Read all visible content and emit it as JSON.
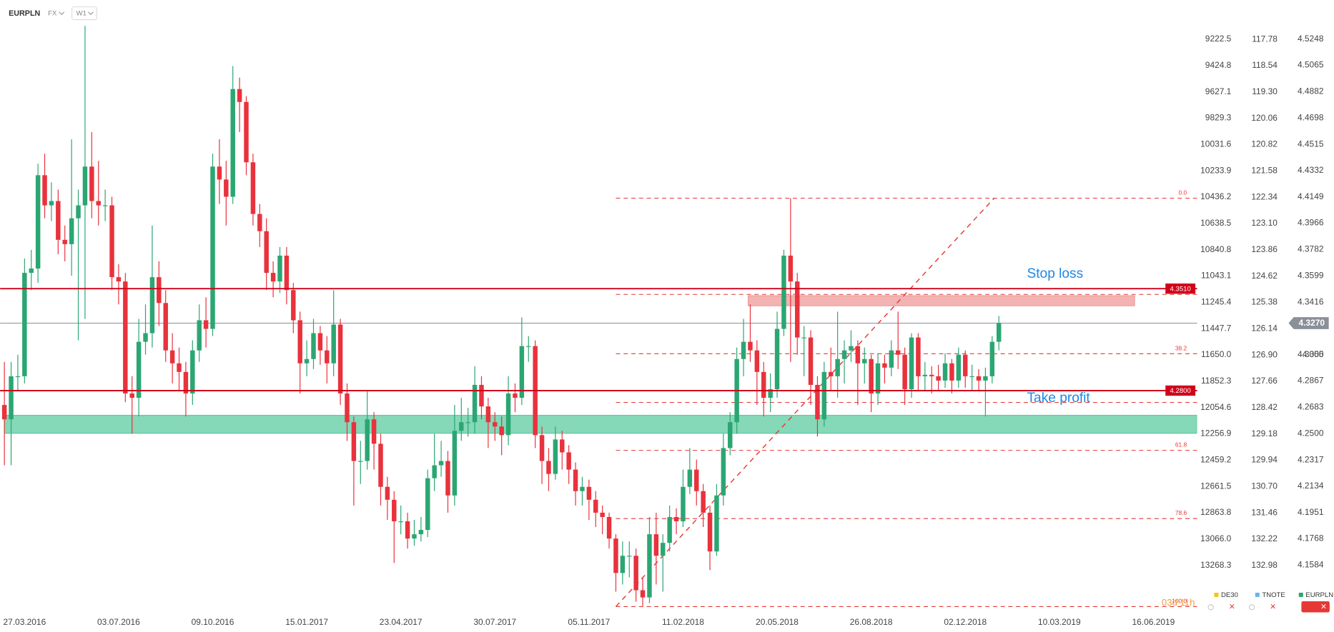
{
  "header": {
    "symbol": "EURPLN",
    "market": "FX",
    "interval": "W1"
  },
  "chart_data": {
    "type": "candlestick",
    "name": "EURPLN",
    "color": "#2ba673",
    "up_color": "#2ba673",
    "down_color": "#e8323c",
    "xlim": [
      0,
      177.5
    ],
    "xticks": [
      {
        "value": 3,
        "label": "27.03.2016"
      },
      {
        "value": 17,
        "label": "03.07.2016"
      },
      {
        "value": 31,
        "label": "09.10.2016"
      },
      {
        "value": 45,
        "label": "15.01.2017"
      },
      {
        "value": 59,
        "label": "23.04.2017"
      },
      {
        "value": 73,
        "label": "30.07.2017"
      },
      {
        "value": 87,
        "label": "05.11.2017"
      },
      {
        "value": 101,
        "label": "11.02.2018"
      },
      {
        "value": 115,
        "label": "20.05.2018"
      },
      {
        "value": 129,
        "label": "26.08.2018"
      },
      {
        "value": 143,
        "label": "02.12.2018"
      },
      {
        "value": 157,
        "label": "10.03.2019"
      },
      {
        "value": 171,
        "label": "16.06.2019"
      }
    ],
    "ylim": [
      4.125,
      4.552
    ],
    "yticks": [
      4.5248,
      4.5065,
      4.4882,
      4.4698,
      4.4515,
      4.4332,
      4.4149,
      4.3966,
      4.3782,
      4.3599,
      4.3416,
      4.305,
      {
        "value": 4.305,
        "label": "4.3050"
      },
      4.2867,
      4.2683,
      {
        "value": 4.25,
        "label": "4.2500"
      },
      4.2317,
      4.2134,
      4.1951,
      4.1768,
      4.1584
    ],
    "other_axes": [
      {
        "name": "DE30",
        "color": "#f5c518",
        "lim": [
          13636.1,
          8920.4
        ],
        "ticks": [
          9222.5,
          9424.8,
          9627.1,
          9829.3,
          10031.6,
          10233.9,
          10436.2,
          10638.5,
          10840.8,
          11043.1,
          11245.4,
          11447.7,
          {
            "value": 11650,
            "label": "11650.0"
          },
          11852.3,
          12054.6,
          12256.9,
          12459.2,
          12661.5,
          12863.8,
          {
            "value": 13066,
            "label": "13066.0"
          },
          13268.3
        ]
      },
      {
        "name": "TNOTE",
        "color": "#64b5f6",
        "lim": [
          134.36,
          116.64
        ],
        "ticks": [
          117.78,
          118.54,
          {
            "value": 119.3,
            "label": "119.30"
          },
          120.06,
          120.82,
          121.58,
          122.34,
          {
            "value": 123.1,
            "label": "123.10"
          },
          123.86,
          124.62,
          125.38,
          126.14,
          {
            "value": 126.9,
            "label": "126.90"
          },
          127.66,
          128.42,
          129.18,
          129.94,
          {
            "value": 130.7,
            "label": "130.70"
          },
          131.46,
          132.22,
          132.98
        ]
      }
    ],
    "open": [
      4.27,
      4.26,
      4.29,
      4.29,
      4.362,
      4.365,
      4.43,
      4.409,
      4.412,
      4.385,
      4.382,
      4.4,
      4.409,
      4.436,
      4.412,
      4.409,
      4.409,
      4.359,
      4.356,
      4.278,
      4.275,
      4.314,
      4.32,
      4.359,
      4.341,
      4.308,
      4.299,
      4.293,
      4.278,
      4.308,
      4.329,
      4.323,
      4.436,
      4.427,
      4.415,
      4.49,
      4.481,
      4.439,
      4.403,
      4.391,
      4.362,
      4.356,
      4.374,
      4.35,
      4.329,
      4.299,
      4.302,
      4.32,
      4.308,
      4.299,
      4.326,
      4.278,
      4.258,
      4.231,
      4.231,
      4.26,
      4.243,
      4.213,
      4.204,
      4.189,
      4.189,
      4.177,
      4.18,
      4.183,
      4.219,
      4.228,
      4.231,
      4.207,
      4.252,
      4.258,
      4.258,
      4.284,
      4.269,
      4.258,
      4.255,
      4.249,
      4.278,
      4.275,
      4.311,
      4.311,
      4.249,
      4.231,
      4.222,
      4.246,
      4.237,
      4.225,
      4.21,
      4.213,
      4.204,
      4.195,
      4.192,
      4.177,
      4.153,
      4.165,
      4.165,
      4.141,
      4.136,
      4.18,
      4.165,
      4.174,
      4.192,
      4.189,
      4.213,
      4.225,
      4.21,
      4.195,
      4.168,
      4.207,
      4.24,
      4.258,
      4.302,
      4.314,
      4.308,
      4.293,
      4.275,
      4.281,
      4.323,
      4.374,
      4.356,
      4.317,
      4.317,
      4.284,
      4.26,
      4.293,
      4.29,
      4.302,
      4.308,
      4.311,
      4.299,
      4.302,
      4.278,
      4.299,
      4.296,
      4.308,
      4.305,
      4.281,
      4.317,
      4.29,
      4.291,
      4.29,
      4.287,
      4.299,
      4.287,
      4.305,
      4.29,
      4.29,
      4.287,
      4.29,
      4.314
    ],
    "high": [
      4.3,
      4.3,
      4.305,
      4.372,
      4.378,
      4.438,
      4.445,
      4.425,
      4.42,
      4.395,
      4.455,
      4.42,
      4.534,
      4.46,
      4.44,
      4.42,
      4.415,
      4.368,
      4.362,
      4.29,
      4.33,
      4.34,
      4.395,
      4.37,
      4.35,
      4.32,
      4.31,
      4.3,
      4.315,
      4.34,
      4.345,
      4.445,
      4.455,
      4.44,
      4.506,
      4.498,
      4.485,
      4.445,
      4.41,
      4.4,
      4.37,
      4.38,
      4.38,
      4.355,
      4.335,
      4.315,
      4.33,
      4.325,
      4.318,
      4.35,
      4.33,
      4.285,
      4.262,
      4.245,
      4.28,
      4.265,
      4.25,
      4.22,
      4.21,
      4.2,
      4.195,
      4.19,
      4.192,
      4.225,
      4.25,
      4.245,
      4.238,
      4.27,
      4.275,
      4.268,
      4.297,
      4.29,
      4.275,
      4.265,
      4.262,
      4.29,
      4.285,
      4.331,
      4.318,
      4.315,
      4.255,
      4.24,
      4.255,
      4.252,
      4.242,
      4.23,
      4.22,
      4.218,
      4.21,
      4.2,
      4.195,
      4.18,
      4.175,
      4.175,
      4.17,
      4.15,
      4.192,
      4.195,
      4.18,
      4.2,
      4.198,
      4.225,
      4.24,
      4.232,
      4.215,
      4.2,
      4.215,
      4.25,
      4.265,
      4.31,
      4.33,
      4.34,
      4.315,
      4.3,
      4.292,
      4.335,
      4.378,
      4.414,
      4.362,
      4.325,
      4.322,
      4.29,
      4.3,
      4.31,
      4.335,
      4.315,
      4.322,
      4.315,
      4.31,
      4.305,
      4.306,
      4.305,
      4.315,
      4.335,
      4.31,
      4.32,
      4.32,
      4.3,
      4.297,
      4.298,
      4.306,
      4.302,
      4.31,
      4.308,
      4.298,
      4.295,
      4.296,
      4.318,
      4.332
    ],
    "low": [
      4.228,
      4.228,
      4.28,
      4.285,
      4.35,
      4.355,
      4.4,
      4.398,
      4.375,
      4.37,
      4.36,
      4.315,
      4.33,
      4.4,
      4.395,
      4.398,
      4.35,
      4.34,
      4.272,
      4.25,
      4.262,
      4.305,
      4.31,
      4.325,
      4.3,
      4.285,
      4.28,
      4.262,
      4.27,
      4.3,
      4.31,
      4.318,
      4.41,
      4.395,
      4.41,
      4.46,
      4.43,
      4.395,
      4.38,
      4.35,
      4.345,
      4.348,
      4.34,
      4.32,
      4.278,
      4.29,
      4.295,
      4.298,
      4.285,
      4.29,
      4.27,
      4.245,
      4.2,
      4.215,
      4.225,
      4.225,
      4.2,
      4.19,
      4.16,
      4.18,
      4.17,
      4.172,
      4.175,
      4.178,
      4.21,
      4.22,
      4.195,
      4.2,
      4.245,
      4.248,
      4.25,
      4.26,
      4.24,
      4.245,
      4.235,
      4.242,
      4.265,
      4.27,
      4.3,
      4.24,
      4.215,
      4.21,
      4.218,
      4.225,
      4.215,
      4.2,
      4.2,
      4.19,
      4.185,
      4.18,
      4.17,
      4.14,
      4.145,
      4.15,
      4.133,
      4.13,
      4.132,
      4.145,
      4.14,
      4.168,
      4.18,
      4.185,
      4.208,
      4.2,
      4.185,
      4.155,
      4.165,
      4.2,
      4.235,
      4.25,
      4.29,
      4.3,
      4.27,
      4.262,
      4.265,
      4.275,
      4.318,
      4.3,
      4.305,
      4.29,
      4.27,
      4.248,
      4.255,
      4.28,
      4.275,
      4.285,
      4.3,
      4.27,
      4.285,
      4.265,
      4.27,
      4.285,
      4.29,
      4.295,
      4.27,
      4.275,
      4.28,
      4.28,
      4.278,
      4.28,
      4.282,
      4.278,
      4.282,
      4.282,
      4.28,
      4.28,
      4.262,
      4.285,
      4.308
    ],
    "close": [
      4.26,
      4.29,
      4.29,
      4.362,
      4.365,
      4.43,
      4.409,
      4.412,
      4.385,
      4.382,
      4.4,
      4.409,
      4.436,
      4.412,
      4.409,
      4.409,
      4.359,
      4.356,
      4.278,
      4.275,
      4.314,
      4.32,
      4.359,
      4.341,
      4.308,
      4.299,
      4.293,
      4.278,
      4.308,
      4.329,
      4.323,
      4.436,
      4.427,
      4.415,
      4.49,
      4.481,
      4.439,
      4.403,
      4.391,
      4.362,
      4.356,
      4.374,
      4.35,
      4.329,
      4.299,
      4.302,
      4.32,
      4.308,
      4.299,
      4.326,
      4.278,
      4.258,
      4.231,
      4.231,
      4.26,
      4.243,
      4.213,
      4.204,
      4.189,
      4.189,
      4.177,
      4.18,
      4.183,
      4.219,
      4.228,
      4.231,
      4.207,
      4.252,
      4.258,
      4.258,
      4.284,
      4.269,
      4.258,
      4.255,
      4.249,
      4.278,
      4.275,
      4.311,
      4.311,
      4.249,
      4.231,
      4.222,
      4.246,
      4.237,
      4.225,
      4.21,
      4.213,
      4.204,
      4.195,
      4.192,
      4.177,
      4.153,
      4.165,
      4.165,
      4.141,
      4.136,
      4.18,
      4.165,
      4.174,
      4.192,
      4.189,
      4.213,
      4.225,
      4.21,
      4.195,
      4.168,
      4.207,
      4.24,
      4.258,
      4.302,
      4.314,
      4.308,
      4.293,
      4.275,
      4.281,
      4.323,
      4.374,
      4.356,
      4.317,
      4.317,
      4.284,
      4.26,
      4.293,
      4.29,
      4.302,
      4.308,
      4.311,
      4.299,
      4.302,
      4.278,
      4.299,
      4.296,
      4.308,
      4.305,
      4.281,
      4.317,
      4.29,
      4.291,
      4.29,
      4.287,
      4.299,
      4.287,
      4.305,
      4.29,
      4.29,
      4.287,
      4.29,
      4.314,
      4.327
    ],
    "current_price": {
      "value": 4.327,
      "label": "4.3270",
      "color": "#8a8f98"
    },
    "levels": [
      {
        "name": "Stop loss",
        "value": 4.351,
        "label": "4.3510",
        "color": "#d0021b"
      },
      {
        "name": "Take profit",
        "value": 4.28,
        "label": "4.2800",
        "color": "#d0021b"
      }
    ],
    "annotation_color": "#1e88e5",
    "zones": [
      {
        "from": 4.2503,
        "to": 4.2628,
        "x_from": 0,
        "x_to": 177.5,
        "color": "#5ccba0"
      },
      {
        "from": 4.3391,
        "to": 4.3461,
        "x_from": 110.7,
        "x_to": 168.2,
        "color": "#ef9a9a"
      }
    ],
    "fibonacci": {
      "color": "#e53935",
      "start": [
        91,
        4.1296
      ],
      "end": [
        147.3,
        4.414
      ],
      "levels": [
        {
          "value": 4.414,
          "label": "0.0"
        },
        {
          "value": 4.347,
          "label": null
        },
        {
          "value": 4.3057,
          "label": "38.2"
        },
        {
          "value": 4.2718,
          "label": null
        },
        {
          "value": 4.2384,
          "label": "61.8"
        },
        {
          "value": 4.1909,
          "label": "78.6"
        },
        {
          "value": 4.1296,
          "label": "100.0"
        }
      ]
    },
    "timer": "03d 11h"
  }
}
